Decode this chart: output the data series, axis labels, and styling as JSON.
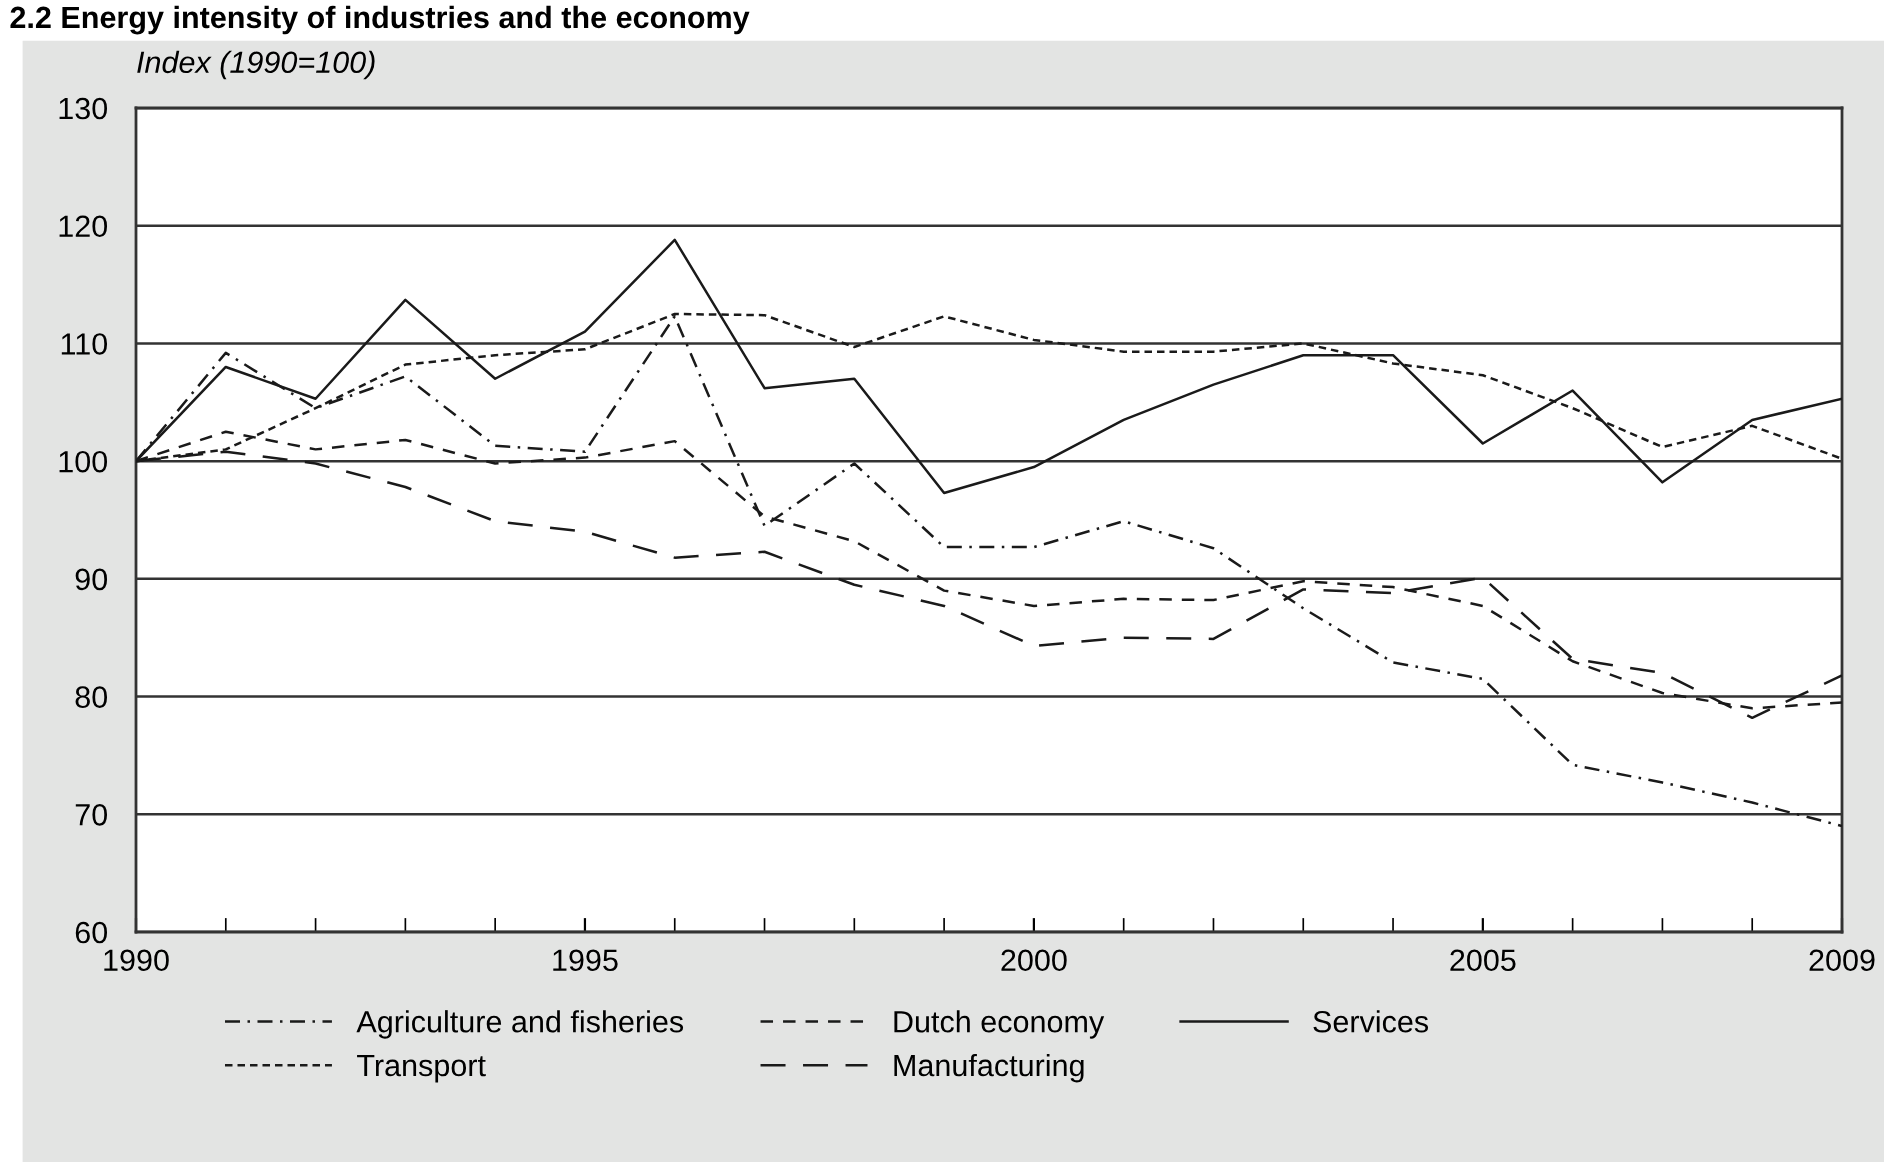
{
  "chart_data": {
    "type": "line",
    "title": "2.2 Energy intensity of industries and the economy",
    "ylabel": "Index (1990=100)",
    "x": [
      1990,
      1991,
      1992,
      1993,
      1994,
      1995,
      1996,
      1997,
      1998,
      1999,
      2000,
      2001,
      2002,
      2003,
      2004,
      2005,
      2006,
      2007,
      2008,
      2009
    ],
    "xlim": [
      1990,
      2009
    ],
    "xticks": [
      1990,
      1995,
      2000,
      2005,
      2009
    ],
    "ylim": [
      60,
      130
    ],
    "yticks": [
      60,
      70,
      80,
      90,
      100,
      110,
      120,
      130
    ],
    "grid": "y",
    "legend": "bottom",
    "marker": "none",
    "series": [
      {
        "name": "Agriculture and fisheries",
        "color": "#1a1a1a",
        "line_style": "dashdot",
        "values": [
          100,
          109.2,
          104.5,
          107.2,
          101.3,
          100.8,
          112.3,
          94.5,
          99.8,
          92.7,
          92.7,
          94.9,
          92.6,
          87.5,
          82.9,
          81.5,
          74.2,
          72.7,
          71,
          69
        ]
      },
      {
        "name": "Transport",
        "color": "#1a1a1a",
        "line_style": "dotted",
        "values": [
          100,
          101,
          104.5,
          108.2,
          109,
          109.5,
          112.5,
          112.4,
          109.7,
          112.3,
          110.3,
          109.3,
          109.3,
          110,
          108.3,
          107.3,
          104.5,
          101.2,
          103,
          100.2
        ]
      },
      {
        "name": "Dutch economy",
        "color": "#1a1a1a",
        "line_style": "dashed",
        "values": [
          100,
          102.5,
          101,
          101.8,
          99.8,
          100.3,
          101.7,
          95.3,
          93.2,
          89,
          87.7,
          88.3,
          88.2,
          89.8,
          89.3,
          87.7,
          83,
          80.3,
          79,
          79.5
        ]
      },
      {
        "name": "Manufacturing",
        "color": "#1a1a1a",
        "line_style": "longdash",
        "values": [
          100,
          100.8,
          99.8,
          97.8,
          94.9,
          94,
          91.8,
          92.3,
          89.5,
          87.7,
          84.3,
          85,
          84.9,
          89.1,
          88.8,
          90.1,
          83.2,
          82,
          78.2,
          81.8
        ]
      },
      {
        "name": "Services",
        "color": "#1a1a1a",
        "line_style": "solid",
        "values": [
          100,
          108,
          105.3,
          113.7,
          107,
          111,
          118.8,
          106.2,
          107,
          97.3,
          99.5,
          103.5,
          106.5,
          109,
          109,
          101.5,
          106,
          98.2,
          103.5,
          105.3
        ]
      }
    ]
  }
}
